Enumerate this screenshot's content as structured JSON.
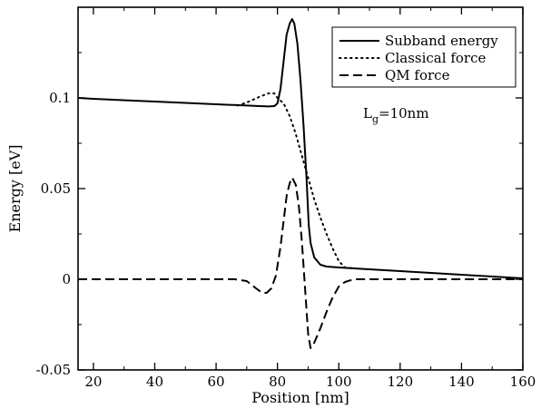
{
  "chart_data": {
    "type": "line",
    "title": "",
    "xlabel": "Position [nm]",
    "ylabel": "Energy [eV]",
    "xlim": [
      15,
      160
    ],
    "ylim": [
      -0.05,
      0.15
    ],
    "x_ticks": [
      20,
      40,
      60,
      80,
      100,
      120,
      140,
      160
    ],
    "y_ticks": [
      -0.05,
      0,
      0.05,
      0.1
    ],
    "y_tick_labels": [
      "-0.05",
      "0",
      "0.05",
      "0.1"
    ],
    "grid": false,
    "legend_position": "top-right",
    "annotation": {
      "main": "L",
      "sub": "g",
      "rest": "=10nm"
    },
    "series": [
      {
        "name": "Subband energy",
        "style": "solid",
        "color": "#000000",
        "points": [
          [
            15,
            0.1
          ],
          [
            20,
            0.0995
          ],
          [
            40,
            0.098
          ],
          [
            60,
            0.0965
          ],
          [
            70,
            0.0958
          ],
          [
            74,
            0.0955
          ],
          [
            77,
            0.0953
          ],
          [
            79,
            0.0955
          ],
          [
            80,
            0.097
          ],
          [
            81,
            0.105
          ],
          [
            82,
            0.12
          ],
          [
            83,
            0.135
          ],
          [
            84,
            0.141
          ],
          [
            84.8,
            0.1435
          ],
          [
            85.5,
            0.141
          ],
          [
            86.5,
            0.13
          ],
          [
            87.5,
            0.11
          ],
          [
            88.5,
            0.085
          ],
          [
            89.5,
            0.055
          ],
          [
            90.2,
            0.03
          ],
          [
            90.8,
            0.02
          ],
          [
            92,
            0.012
          ],
          [
            94,
            0.008
          ],
          [
            96,
            0.007
          ],
          [
            100,
            0.0065
          ],
          [
            120,
            0.0045
          ],
          [
            140,
            0.0025
          ],
          [
            160,
            0.0005
          ]
        ]
      },
      {
        "name": "Classical force",
        "style": "dotted",
        "color": "#000000",
        "points": [
          [
            67,
            0.0958
          ],
          [
            70,
            0.0975
          ],
          [
            74,
            0.1005
          ],
          [
            77,
            0.1025
          ],
          [
            79,
            0.1025
          ],
          [
            80,
            0.1
          ],
          [
            82,
            0.097
          ],
          [
            84,
            0.09
          ],
          [
            86,
            0.08
          ],
          [
            88,
            0.068
          ],
          [
            90,
            0.056
          ],
          [
            92,
            0.044
          ],
          [
            94,
            0.034
          ],
          [
            96,
            0.025
          ],
          [
            98,
            0.017
          ],
          [
            100,
            0.01
          ],
          [
            102,
            0.0065
          ],
          [
            105,
            0.006
          ]
        ]
      },
      {
        "name": "QM force",
        "style": "dashed",
        "color": "#000000",
        "points": [
          [
            15,
            0
          ],
          [
            66,
            0
          ],
          [
            70,
            -0.001
          ],
          [
            73,
            -0.005
          ],
          [
            75,
            -0.0075
          ],
          [
            76.5,
            -0.0075
          ],
          [
            78,
            -0.005
          ],
          [
            79.5,
            0.002
          ],
          [
            81,
            0.018
          ],
          [
            82,
            0.032
          ],
          [
            83,
            0.046
          ],
          [
            84,
            0.053
          ],
          [
            84.8,
            0.056
          ],
          [
            86,
            0.052
          ],
          [
            87,
            0.04
          ],
          [
            88,
            0.02
          ],
          [
            89,
            -0.005
          ],
          [
            90,
            -0.03
          ],
          [
            90.8,
            -0.038
          ],
          [
            92,
            -0.035
          ],
          [
            94,
            -0.027
          ],
          [
            96,
            -0.018
          ],
          [
            98,
            -0.01
          ],
          [
            100,
            -0.004
          ],
          [
            102,
            -0.0015
          ],
          [
            105,
            0
          ],
          [
            160,
            0
          ]
        ]
      }
    ]
  }
}
